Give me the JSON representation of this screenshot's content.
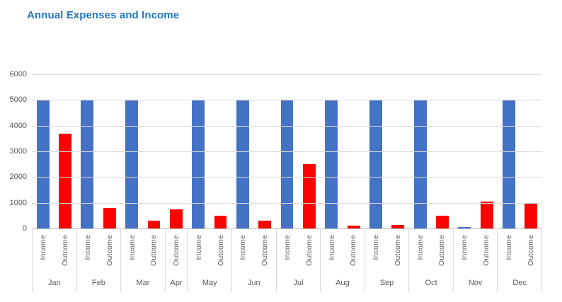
{
  "title": "Annual Expenses and Income",
  "colors": {
    "income_bar": "#4472C4",
    "outcome_bar": "#FF0000",
    "title_text": "#2077C6",
    "axis_text": "#595959",
    "gridline": "#D9D9D9",
    "axis_line": "#BFBFBF",
    "divider": "#D9D9D9"
  },
  "chart_data": {
    "type": "bar",
    "title": "Annual Expenses and Income",
    "xlabel": "",
    "ylabel": "",
    "ylim": [
      0,
      6000
    ],
    "yticks": [
      0,
      1000,
      2000,
      3000,
      4000,
      5000,
      6000
    ],
    "grid": true,
    "legend_position": "none",
    "series_colors": {
      "Income": "#4472C4",
      "Outcome": "#FF0000"
    },
    "groups": [
      {
        "month": "Jan",
        "bars": [
          {
            "series": "Income",
            "value": 5000
          },
          {
            "series": "Outcome",
            "value": 3700
          }
        ]
      },
      {
        "month": "Feb",
        "bars": [
          {
            "series": "Income",
            "value": 5000
          },
          {
            "series": "Outcome",
            "value": 800
          }
        ]
      },
      {
        "month": "Mar",
        "bars": [
          {
            "series": "Income",
            "value": 5000
          },
          {
            "series": "Outcome",
            "value": 300
          }
        ]
      },
      {
        "month": "Apr",
        "bars": [
          {
            "series": "Outcome",
            "value": 750
          }
        ]
      },
      {
        "month": "May",
        "bars": [
          {
            "series": "Income",
            "value": 5000
          },
          {
            "series": "Outcome",
            "value": 500
          }
        ]
      },
      {
        "month": "Jun",
        "bars": [
          {
            "series": "Income",
            "value": 5000
          },
          {
            "series": "Outcome",
            "value": 300
          }
        ]
      },
      {
        "month": "Jul",
        "bars": [
          {
            "series": "Income",
            "value": 5000
          },
          {
            "series": "Outcome",
            "value": 2500
          }
        ]
      },
      {
        "month": "Aug",
        "bars": [
          {
            "series": "Income",
            "value": 5000
          },
          {
            "series": "Outcome",
            "value": 100
          }
        ]
      },
      {
        "month": "Sep",
        "bars": [
          {
            "series": "Income",
            "value": 5000
          },
          {
            "series": "Outcome",
            "value": 150
          }
        ]
      },
      {
        "month": "Oct",
        "bars": [
          {
            "series": "Income",
            "value": 5000
          },
          {
            "series": "Outcome",
            "value": 500
          }
        ]
      },
      {
        "month": "Nov",
        "bars": [
          {
            "series": "Income",
            "value": 50
          },
          {
            "series": "Outcome",
            "value": 1050
          }
        ]
      },
      {
        "month": "Dec",
        "bars": [
          {
            "series": "Income",
            "value": 5000
          },
          {
            "series": "Outcome",
            "value": 950
          }
        ]
      }
    ]
  }
}
